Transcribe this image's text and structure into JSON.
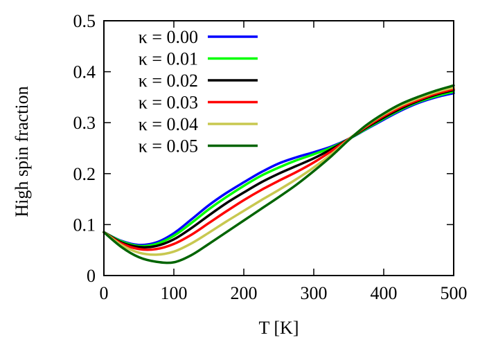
{
  "chart_data": {
    "type": "line",
    "title": "",
    "xlabel": "T [K]",
    "ylabel": "High spin fraction",
    "xlim": [
      0,
      500
    ],
    "ylim": [
      0,
      0.5
    ],
    "x_ticks": [
      0,
      100,
      200,
      300,
      400,
      500
    ],
    "x_tick_labels": [
      "0",
      "100",
      "200",
      "300",
      "400",
      "500"
    ],
    "y_ticks": [
      0,
      0.1,
      0.2,
      0.3,
      0.4,
      0.5
    ],
    "y_tick_labels": [
      "0",
      "0.1",
      "0.2",
      "0.3",
      "0.4",
      "0.5"
    ],
    "grid": false,
    "legend_position": "top-left",
    "x": [
      0,
      25,
      50,
      75,
      100,
      125,
      150,
      175,
      200,
      225,
      250,
      275,
      300,
      325,
      350,
      375,
      400,
      425,
      450,
      475,
      500
    ],
    "series": [
      {
        "name": "κ = 0.00",
        "color": "#0000ff",
        "values": [
          0.085,
          0.068,
          0.06,
          0.065,
          0.083,
          0.11,
          0.138,
          0.162,
          0.183,
          0.203,
          0.22,
          0.232,
          0.242,
          0.253,
          0.268,
          0.287,
          0.306,
          0.324,
          0.339,
          0.35,
          0.358
        ]
      },
      {
        "name": "κ = 0.01",
        "color": "#00ff00",
        "values": [
          0.085,
          0.067,
          0.058,
          0.062,
          0.078,
          0.103,
          0.13,
          0.154,
          0.176,
          0.196,
          0.212,
          0.226,
          0.238,
          0.251,
          0.268,
          0.288,
          0.308,
          0.326,
          0.341,
          0.352,
          0.361
        ]
      },
      {
        "name": "κ = 0.02",
        "color": "#000000",
        "values": [
          0.085,
          0.065,
          0.056,
          0.058,
          0.071,
          0.093,
          0.118,
          0.142,
          0.163,
          0.183,
          0.2,
          0.215,
          0.23,
          0.248,
          0.268,
          0.29,
          0.31,
          0.328,
          0.343,
          0.355,
          0.364
        ]
      },
      {
        "name": "κ = 0.03",
        "color": "#ff0000",
        "values": [
          0.085,
          0.063,
          0.052,
          0.052,
          0.062,
          0.08,
          0.103,
          0.126,
          0.148,
          0.168,
          0.186,
          0.203,
          0.222,
          0.244,
          0.268,
          0.292,
          0.313,
          0.331,
          0.345,
          0.357,
          0.366
        ]
      },
      {
        "name": "κ = 0.04",
        "color": "#c8c850",
        "values": [
          0.085,
          0.06,
          0.045,
          0.041,
          0.047,
          0.063,
          0.084,
          0.106,
          0.127,
          0.148,
          0.168,
          0.189,
          0.212,
          0.238,
          0.267,
          0.294,
          0.316,
          0.334,
          0.348,
          0.36,
          0.369
        ]
      },
      {
        "name": "κ = 0.05",
        "color": "#006400",
        "values": [
          0.085,
          0.056,
          0.036,
          0.027,
          0.026,
          0.04,
          0.062,
          0.085,
          0.108,
          0.131,
          0.154,
          0.178,
          0.205,
          0.234,
          0.266,
          0.295,
          0.318,
          0.337,
          0.351,
          0.363,
          0.373
        ]
      }
    ]
  }
}
